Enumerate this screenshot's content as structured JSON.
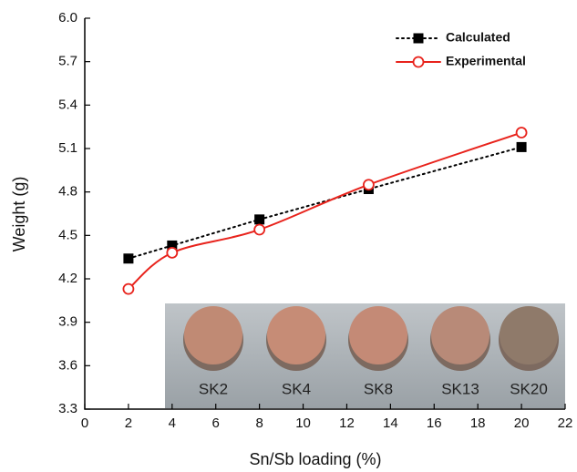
{
  "chart_data": {
    "type": "line",
    "x_label": "Sn/Sb loading (%)",
    "y_label": "Weight (g)",
    "x": [
      2,
      4,
      8,
      13,
      20
    ],
    "series": [
      {
        "name": "Calculated",
        "color": "#000000",
        "values": [
          4.34,
          4.43,
          4.61,
          4.82,
          5.11
        ]
      },
      {
        "name": "Experimental",
        "color": "#e8231c",
        "values": [
          4.13,
          4.38,
          4.54,
          4.85,
          5.21
        ]
      }
    ],
    "xlim": [
      0,
      22
    ],
    "xticks": [
      0,
      2,
      4,
      6,
      8,
      10,
      12,
      14,
      16,
      18,
      20,
      22
    ],
    "ylim": [
      3.3,
      6
    ],
    "yticks": [
      3.3,
      3.6,
      3.9,
      4.2,
      4.5,
      4.8,
      5.1,
      5.4,
      5.7,
      {
        "value": 6,
        "label": "6.0"
      }
    ],
    "legend": "upper right",
    "inset": {
      "labels": [
        "SK2",
        "SK4",
        "SK8",
        "SK13",
        "SK20"
      ]
    }
  }
}
